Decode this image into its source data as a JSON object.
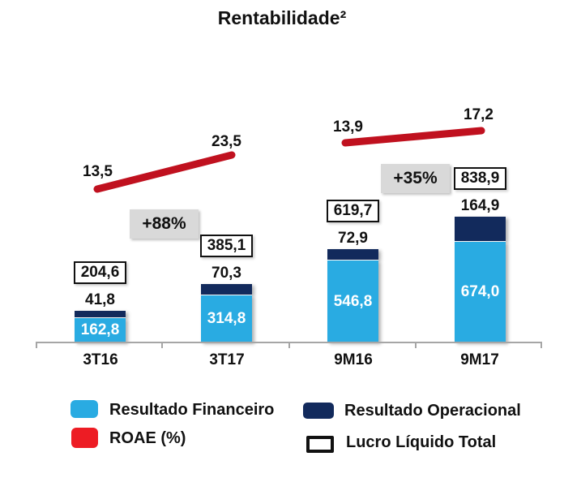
{
  "title": "Rentabilidade²",
  "colors": {
    "financeiro": "#29ABE2",
    "operacional": "#122A5C",
    "roae_line": "#C0111F",
    "roae_legend": "#ED1C24",
    "growth_box_bg": "#D9D9D9",
    "axis": "#A6A6A6"
  },
  "chart_data": {
    "type": "combo-stacked-bar-line",
    "categories": [
      "3T16",
      "3T17",
      "9M16",
      "9M17"
    ],
    "series": [
      {
        "name": "Resultado Financeiro",
        "type": "bar-stack-segment",
        "values": [
          162.8,
          314.8,
          546.8,
          674.0
        ]
      },
      {
        "name": "Resultado Operacional",
        "type": "bar-stack-segment",
        "values": [
          41.8,
          70.3,
          72.9,
          164.9
        ]
      },
      {
        "name": "Lucro Líquido Total",
        "type": "boxed-total-label",
        "values": [
          204.6,
          385.1,
          619.7,
          838.9
        ]
      },
      {
        "name": "ROAE (%)",
        "type": "line",
        "values": [
          13.5,
          23.5,
          13.9,
          17.2
        ]
      }
    ],
    "annotations": [
      {
        "label": "+88%",
        "between": [
          "3T16",
          "3T17"
        ]
      },
      {
        "label": "+35%",
        "between": [
          "9M16",
          "9M17"
        ]
      }
    ],
    "legend_position": "bottom",
    "grid": false,
    "value_axis_visible": false
  },
  "groups": [
    {
      "category": "3T16",
      "financeiro_label": "162,8",
      "operacional_label": "41,8",
      "total_label": "204,6",
      "roae_label": "13,5"
    },
    {
      "category": "3T17",
      "financeiro_label": "314,8",
      "operacional_label": "70,3",
      "total_label": "385,1",
      "roae_label": "23,5"
    },
    {
      "category": "9M16",
      "financeiro_label": "546,8",
      "operacional_label": "72,9",
      "total_label": "619,7",
      "roae_label": "13,9"
    },
    {
      "category": "9M17",
      "financeiro_label": "674,0",
      "operacional_label": "164,9",
      "total_label": "838,9",
      "roae_label": "17,2"
    }
  ],
  "annotations": {
    "growth_1": "+88%",
    "growth_2": "+35%"
  },
  "legend": {
    "financeiro": "Resultado Financeiro",
    "operacional": "Resultado Operacional",
    "roae": "ROAE (%)",
    "lucro": "Lucro Líquido Total"
  }
}
